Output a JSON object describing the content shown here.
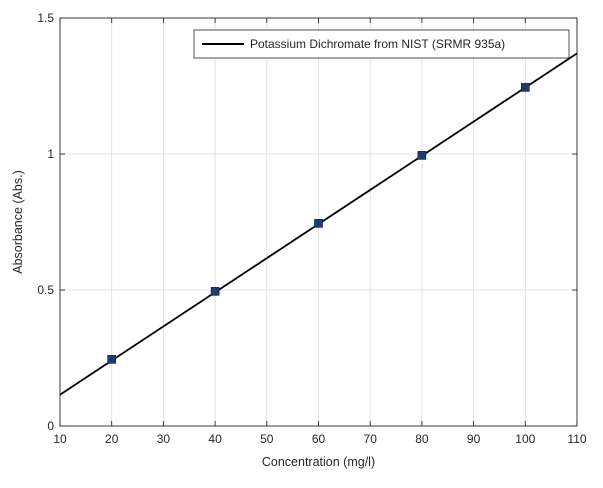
{
  "chart_data": {
    "type": "line",
    "xlabel": "Concentration (mg/l)",
    "ylabel": "Absorbance (Abs.)",
    "xlim": [
      10,
      110
    ],
    "ylim": [
      0,
      1.5
    ],
    "xticks": [
      10,
      20,
      30,
      40,
      50,
      60,
      70,
      80,
      90,
      100,
      110
    ],
    "yticks": [
      0,
      0.5,
      1,
      1.5
    ],
    "ytick_labels": [
      "0",
      "0.5",
      "1",
      "1.5"
    ],
    "grid": true,
    "legend_position": "top-right",
    "series": [
      {
        "name": "Potassium Dichromate from NIST (SRMR 935a)",
        "kind": "fit-line",
        "color": "#000000",
        "x": [
          10,
          110
        ],
        "y": [
          0.115,
          1.37
        ]
      },
      {
        "kind": "markers",
        "color": "#1f3b73",
        "x": [
          20,
          40,
          60,
          80,
          100
        ],
        "y": [
          0.245,
          0.495,
          0.745,
          0.995,
          1.245
        ]
      }
    ]
  }
}
